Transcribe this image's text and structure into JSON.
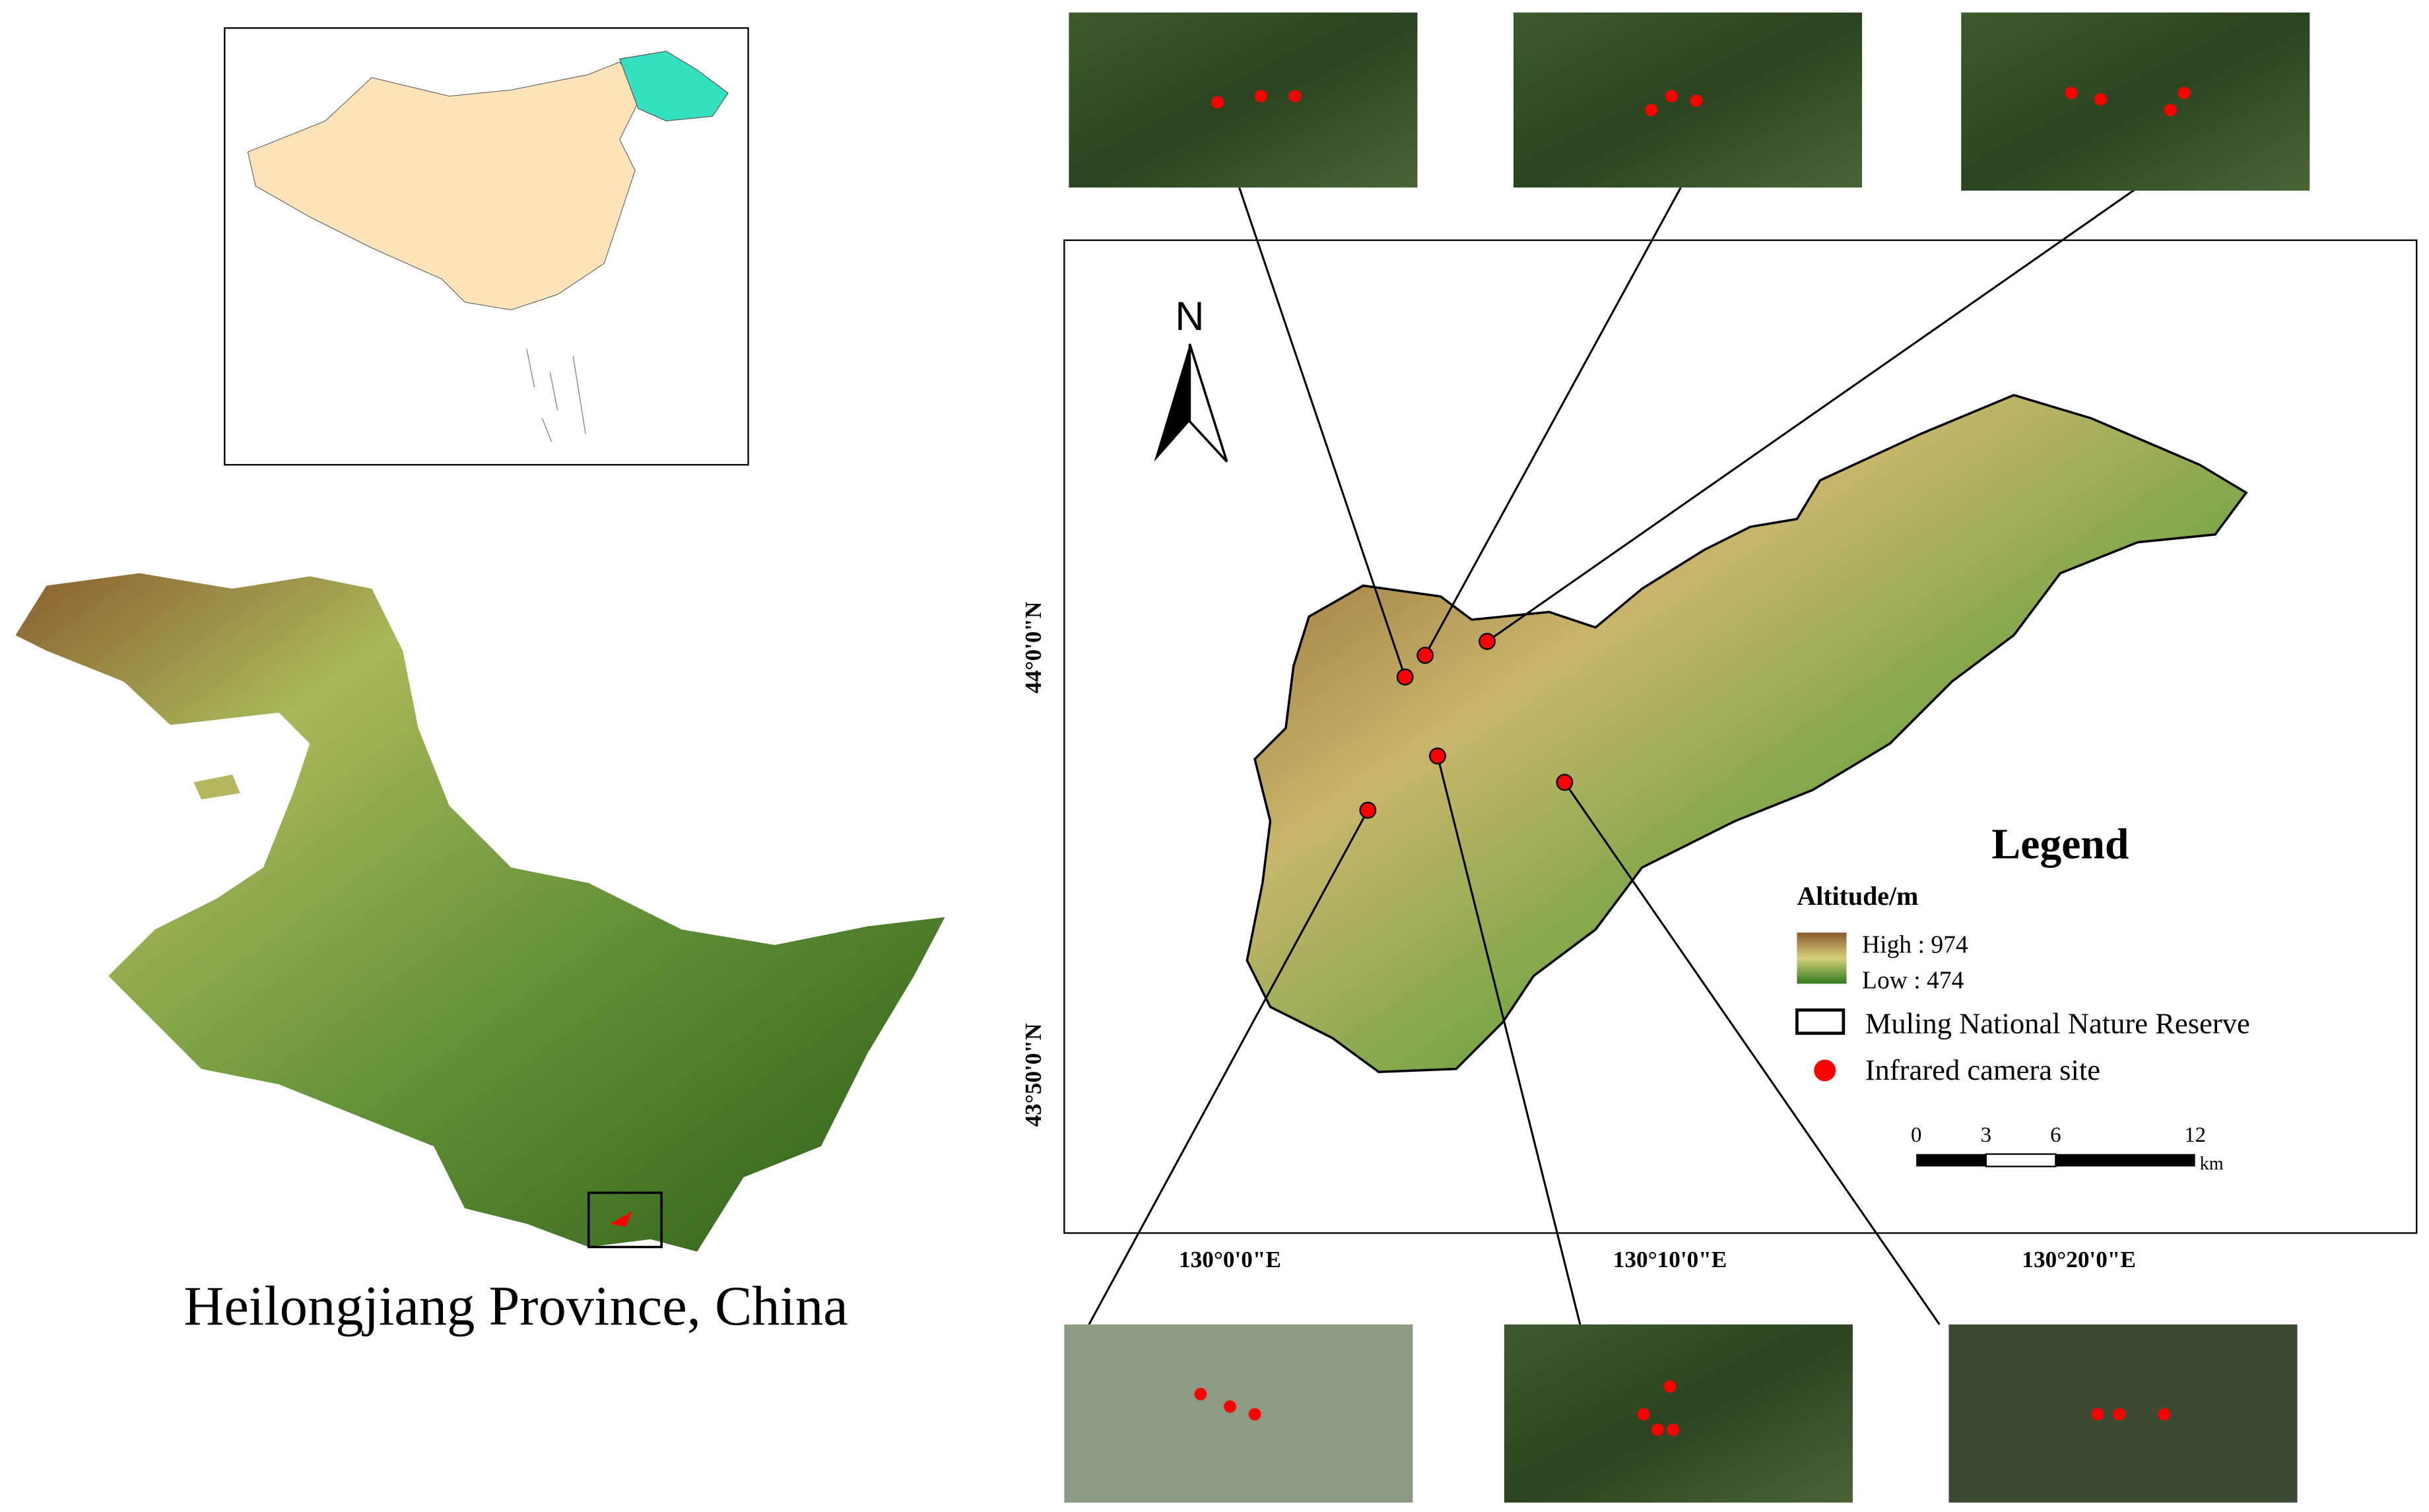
{
  "main_map": {
    "title": "Heilongjiang Province, China"
  },
  "study_area": {
    "north_arrow": "N",
    "latitude_labels": [
      "44°0'0\"N",
      "43°50'0\"N"
    ],
    "longitude_labels": [
      "130°0'0\"E",
      "130°10'0\"E",
      "130°20'0\"E"
    ]
  },
  "legend": {
    "title": "Legend",
    "subtitle": "Altitude/m",
    "high": "High : 974",
    "low": "Low : 474",
    "reserve": "Muling National Nature Reserve",
    "camera": "Infrared camera site"
  },
  "scale_bar": {
    "labels": [
      "0",
      "3",
      "6",
      "12"
    ],
    "unit": "km"
  }
}
